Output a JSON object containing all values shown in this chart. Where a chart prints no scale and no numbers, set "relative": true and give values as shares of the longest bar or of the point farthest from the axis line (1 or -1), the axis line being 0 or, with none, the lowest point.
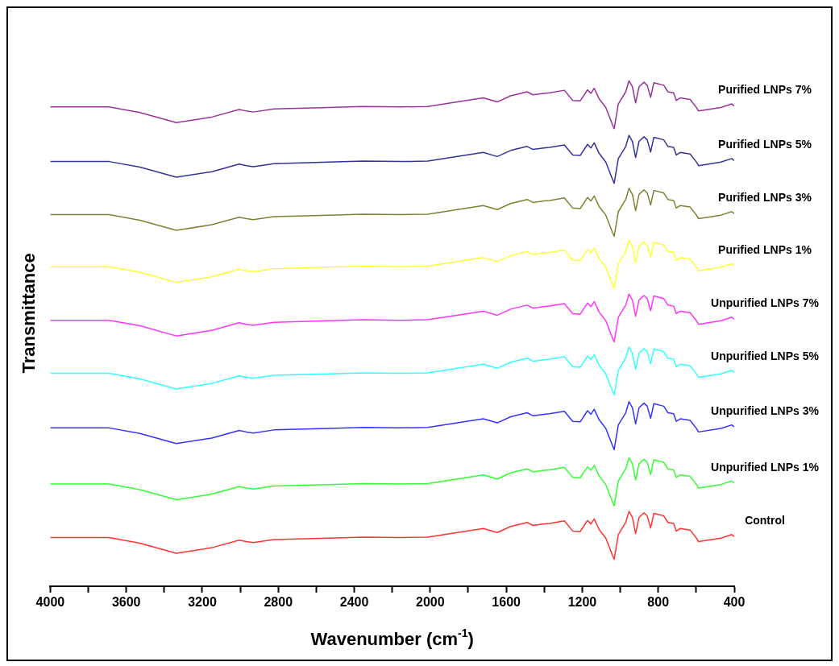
{
  "chart_data": {
    "type": "line",
    "relative": true,
    "xlabel": "Wavenumber (cm$^{-1}$)",
    "ylabel": "Transmittance",
    "x": [
      4000,
      3690,
      3528,
      3337,
      3150,
      3006,
      2967,
      2932,
      2823,
      2535,
      2353,
      2157,
      2013,
      1721,
      1647,
      1577,
      1490,
      1459,
      1402,
      1372,
      1294,
      1250,
      1211,
      1172,
      1154,
      1137,
      1111,
      1076,
      1045,
      1032,
      1010,
      971,
      954,
      936,
      919,
      901,
      875,
      858,
      840,
      823,
      771,
      749,
      719,
      705,
      684,
      632,
      597,
      588,
      470,
      413,
      400
    ],
    "xlim": [
      4000,
      400
    ],
    "xticks": [
      4000,
      {
        "value": 3800,
        "label": null
      },
      3600,
      {
        "value": 3400,
        "label": null
      },
      3200,
      {
        "value": 3000,
        "label": null
      },
      2800,
      {
        "value": 2600,
        "label": null
      },
      2400,
      {
        "value": 2200,
        "label": null
      },
      2000,
      {
        "value": 1800,
        "label": null
      },
      1600,
      {
        "value": 1400,
        "label": null
      },
      1200,
      {
        "value": 1000,
        "label": null
      },
      800,
      {
        "value": 600,
        "label": null
      },
      400
    ],
    "tick_labels": "x",
    "grid": false,
    "legend": false,
    "marker": "none",
    "line_style": "solid",
    "series": [
      {
        "name": "Purified LNPs 7%",
        "color": "#993399",
        "values": [
          0.948,
          0.948,
          0.937,
          0.917,
          0.928,
          0.943,
          0.94,
          0.938,
          0.944,
          0.947,
          0.949,
          0.948,
          0.949,
          0.966,
          0.958,
          0.97,
          0.978,
          0.972,
          0.975,
          0.976,
          0.981,
          0.961,
          0.96,
          0.982,
          0.975,
          0.985,
          0.964,
          0.947,
          0.917,
          0.905,
          0.954,
          0.978,
          1.0,
          0.988,
          0.956,
          0.988,
          0.997,
          0.991,
          0.967,
          0.996,
          0.991,
          0.978,
          0.976,
          0.961,
          0.966,
          0.963,
          0.946,
          0.94,
          0.947,
          0.954,
          0.95
        ]
      },
      {
        "name": "Purified LNPs 5%",
        "color": "#333399",
        "values": [
          0.84,
          0.84,
          0.829,
          0.809,
          0.82,
          0.835,
          0.832,
          0.83,
          0.836,
          0.839,
          0.841,
          0.84,
          0.841,
          0.858,
          0.85,
          0.862,
          0.87,
          0.864,
          0.867,
          0.868,
          0.873,
          0.853,
          0.852,
          0.874,
          0.867,
          0.877,
          0.856,
          0.839,
          0.809,
          0.797,
          0.846,
          0.87,
          0.892,
          0.88,
          0.848,
          0.88,
          0.889,
          0.883,
          0.859,
          0.888,
          0.883,
          0.87,
          0.868,
          0.853,
          0.858,
          0.855,
          0.838,
          0.832,
          0.839,
          0.846,
          0.842
        ]
      },
      {
        "name": "Purified LNPs 3%",
        "color": "#808033",
        "values": [
          0.735,
          0.735,
          0.724,
          0.704,
          0.715,
          0.73,
          0.727,
          0.725,
          0.731,
          0.734,
          0.736,
          0.735,
          0.736,
          0.753,
          0.745,
          0.757,
          0.765,
          0.759,
          0.762,
          0.763,
          0.768,
          0.748,
          0.747,
          0.769,
          0.762,
          0.772,
          0.751,
          0.734,
          0.704,
          0.692,
          0.741,
          0.765,
          0.787,
          0.775,
          0.743,
          0.775,
          0.784,
          0.778,
          0.754,
          0.783,
          0.778,
          0.765,
          0.763,
          0.748,
          0.753,
          0.75,
          0.733,
          0.727,
          0.734,
          0.741,
          0.737
        ]
      },
      {
        "name": "Purified LNPs 1%",
        "color": "#ffff33",
        "values": [
          0.632,
          0.632,
          0.621,
          0.601,
          0.612,
          0.627,
          0.624,
          0.622,
          0.628,
          0.631,
          0.633,
          0.632,
          0.633,
          0.65,
          0.642,
          0.654,
          0.662,
          0.656,
          0.659,
          0.66,
          0.665,
          0.645,
          0.644,
          0.666,
          0.659,
          0.669,
          0.648,
          0.631,
          0.601,
          0.589,
          0.638,
          0.662,
          0.684,
          0.672,
          0.64,
          0.672,
          0.681,
          0.675,
          0.651,
          0.68,
          0.675,
          0.662,
          0.66,
          0.645,
          0.65,
          0.647,
          0.63,
          0.624,
          0.631,
          0.638,
          0.634
        ]
      },
      {
        "name": "Unpurified LNPs 7%",
        "color": "#ff33ff",
        "values": [
          0.526,
          0.526,
          0.515,
          0.495,
          0.506,
          0.521,
          0.518,
          0.516,
          0.522,
          0.525,
          0.527,
          0.526,
          0.527,
          0.544,
          0.536,
          0.548,
          0.556,
          0.55,
          0.553,
          0.554,
          0.559,
          0.539,
          0.538,
          0.56,
          0.553,
          0.563,
          0.542,
          0.525,
          0.495,
          0.483,
          0.532,
          0.556,
          0.578,
          0.566,
          0.534,
          0.566,
          0.575,
          0.569,
          0.545,
          0.574,
          0.569,
          0.556,
          0.554,
          0.539,
          0.544,
          0.541,
          0.524,
          0.518,
          0.525,
          0.532,
          0.528
        ]
      },
      {
        "name": "Unpurified LNPs 5%",
        "color": "#33ffff",
        "values": [
          0.421,
          0.421,
          0.41,
          0.39,
          0.401,
          0.416,
          0.413,
          0.411,
          0.417,
          0.42,
          0.422,
          0.421,
          0.422,
          0.439,
          0.431,
          0.443,
          0.451,
          0.445,
          0.448,
          0.449,
          0.454,
          0.434,
          0.433,
          0.455,
          0.448,
          0.458,
          0.437,
          0.42,
          0.39,
          0.378,
          0.427,
          0.451,
          0.473,
          0.461,
          0.429,
          0.461,
          0.47,
          0.464,
          0.44,
          0.469,
          0.464,
          0.451,
          0.449,
          0.434,
          0.439,
          0.436,
          0.419,
          0.413,
          0.42,
          0.427,
          0.423
        ]
      },
      {
        "name": "Unpurified LNPs 3%",
        "color": "#3333ff",
        "values": [
          0.313,
          0.313,
          0.302,
          0.282,
          0.293,
          0.308,
          0.305,
          0.303,
          0.309,
          0.312,
          0.314,
          0.313,
          0.314,
          0.331,
          0.323,
          0.335,
          0.343,
          0.337,
          0.34,
          0.341,
          0.346,
          0.326,
          0.325,
          0.347,
          0.34,
          0.35,
          0.329,
          0.312,
          0.282,
          0.27,
          0.319,
          0.343,
          0.365,
          0.353,
          0.321,
          0.353,
          0.362,
          0.356,
          0.332,
          0.361,
          0.356,
          0.343,
          0.341,
          0.326,
          0.331,
          0.328,
          0.311,
          0.305,
          0.312,
          0.319,
          0.315
        ]
      },
      {
        "name": "Unpurified LNPs 1%",
        "color": "#33ff33",
        "values": [
          0.202,
          0.202,
          0.191,
          0.171,
          0.182,
          0.197,
          0.194,
          0.192,
          0.198,
          0.201,
          0.203,
          0.202,
          0.203,
          0.22,
          0.212,
          0.224,
          0.232,
          0.226,
          0.229,
          0.23,
          0.235,
          0.215,
          0.214,
          0.236,
          0.229,
          0.239,
          0.218,
          0.201,
          0.171,
          0.159,
          0.208,
          0.232,
          0.254,
          0.242,
          0.21,
          0.242,
          0.251,
          0.245,
          0.221,
          0.25,
          0.245,
          0.232,
          0.23,
          0.215,
          0.22,
          0.217,
          0.2,
          0.194,
          0.201,
          0.208,
          0.204
        ]
      },
      {
        "name": "Control",
        "color": "#ff3333",
        "values": [
          0.096,
          0.096,
          0.085,
          0.065,
          0.076,
          0.091,
          0.088,
          0.086,
          0.092,
          0.095,
          0.097,
          0.096,
          0.097,
          0.114,
          0.106,
          0.118,
          0.126,
          0.12,
          0.123,
          0.124,
          0.129,
          0.109,
          0.108,
          0.13,
          0.123,
          0.133,
          0.112,
          0.095,
          0.065,
          0.053,
          0.102,
          0.126,
          0.148,
          0.136,
          0.104,
          0.136,
          0.145,
          0.139,
          0.115,
          0.144,
          0.139,
          0.126,
          0.124,
          0.109,
          0.114,
          0.111,
          0.094,
          0.088,
          0.095,
          0.102,
          0.098
        ]
      }
    ]
  }
}
